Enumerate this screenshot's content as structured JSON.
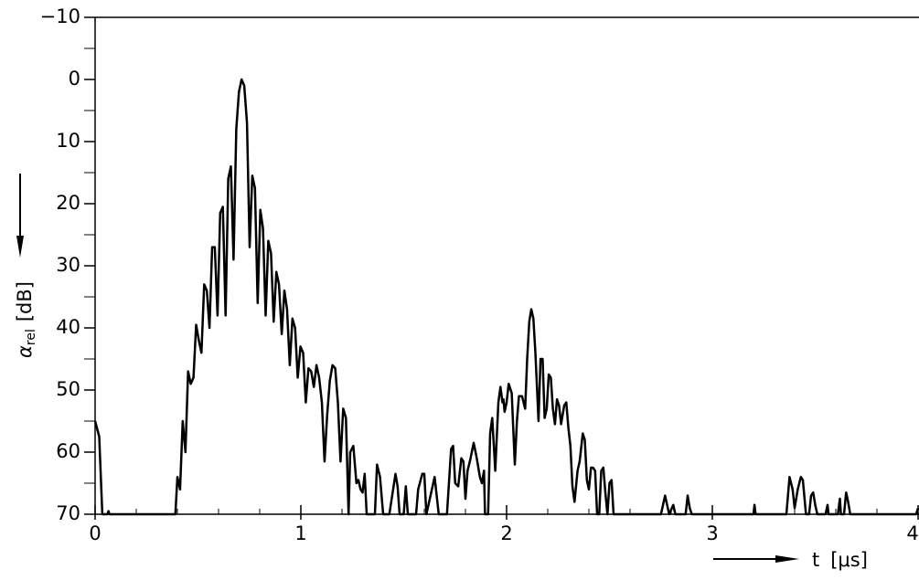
{
  "chart_data": {
    "type": "line",
    "y_label": {
      "symbol": "α",
      "subscript": "rel",
      "unit": "[dB]"
    },
    "x_label": {
      "symbol": "t",
      "unit": "[μs]"
    },
    "color": "#000000",
    "xlim": [
      0,
      4
    ],
    "xticks": [
      0,
      1,
      2,
      3,
      4
    ],
    "x_minor_ticks": [
      0.2,
      0.4,
      0.6,
      0.8,
      1.2,
      1.4,
      1.6,
      1.8,
      2.2,
      2.4,
      2.6,
      2.8,
      3.2,
      3.4,
      3.6,
      3.8
    ],
    "ylim": [
      70,
      -10
    ],
    "yticks": [
      {
        "value": -10,
        "label": "−10"
      },
      0,
      10,
      20,
      30,
      40,
      50,
      60,
      70
    ],
    "y_minor_ticks": [
      -5,
      5,
      15,
      25,
      35,
      45,
      55,
      65
    ],
    "x": [
      0,
      0.02,
      0.035,
      0.06,
      0.065,
      0.07,
      0.39,
      0.4,
      0.413,
      0.426,
      0.439,
      0.452,
      0.465,
      0.478,
      0.491,
      0.504,
      0.517,
      0.53,
      0.543,
      0.556,
      0.569,
      0.582,
      0.595,
      0.608,
      0.621,
      0.634,
      0.647,
      0.66,
      0.673,
      0.686,
      0.699,
      0.712,
      0.725,
      0.738,
      0.751,
      0.764,
      0.777,
      0.79,
      0.803,
      0.816,
      0.829,
      0.842,
      0.855,
      0.868,
      0.881,
      0.894,
      0.907,
      0.92,
      0.933,
      0.946,
      0.959,
      0.972,
      0.985,
      0.998,
      1.011,
      1.024,
      1.037,
      1.05,
      1.063,
      1.076,
      1.089,
      1.102,
      1.115,
      1.128,
      1.141,
      1.154,
      1.167,
      1.18,
      1.193,
      1.206,
      1.219,
      1.232,
      1.24,
      1.255,
      1.27,
      1.28,
      1.29,
      1.3,
      1.31,
      1.32,
      1.36,
      1.37,
      1.385,
      1.4,
      1.43,
      1.46,
      1.47,
      1.48,
      1.5,
      1.51,
      1.52,
      1.56,
      1.57,
      1.59,
      1.6,
      1.61,
      1.63,
      1.65,
      1.67,
      1.71,
      1.73,
      1.74,
      1.75,
      1.765,
      1.78,
      1.79,
      1.8,
      1.81,
      1.825,
      1.84,
      1.855,
      1.87,
      1.88,
      1.89,
      1.895,
      1.91,
      1.92,
      1.93,
      1.945,
      1.96,
      1.97,
      1.98,
      1.985,
      1.99,
      2.0,
      2.01,
      2.025,
      2.04,
      2.05,
      2.06,
      2.075,
      2.09,
      2.1,
      2.11,
      2.12,
      2.13,
      2.14,
      2.155,
      2.165,
      2.175,
      2.185,
      2.195,
      2.205,
      2.215,
      2.225,
      2.235,
      2.245,
      2.255,
      2.265,
      2.28,
      2.29,
      2.3,
      2.31,
      2.32,
      2.33,
      2.345,
      2.355,
      2.37,
      2.38,
      2.39,
      2.4,
      2.41,
      2.42,
      2.43,
      2.44,
      2.45,
      2.46,
      2.47,
      2.48,
      2.49,
      2.5,
      2.51,
      2.52,
      2.75,
      2.77,
      2.79,
      2.81,
      2.82,
      2.87,
      2.88,
      2.89,
      2.9,
      3.2,
      3.205,
      3.21,
      3.36,
      3.375,
      3.39,
      3.4,
      3.415,
      3.43,
      3.44,
      3.455,
      3.47,
      3.48,
      3.49,
      3.5,
      3.51,
      3.55,
      3.56,
      3.565,
      3.61,
      3.62,
      3.625,
      3.64,
      3.65,
      3.66,
      3.67,
      3.99,
      4.0
    ],
    "values": [
      55,
      57.5,
      70,
      70,
      69.5,
      70,
      70,
      64,
      66,
      55,
      60,
      47,
      49,
      48,
      39.5,
      42,
      44,
      33,
      34,
      40,
      27,
      27,
      38,
      21.5,
      20.5,
      38,
      16,
      14,
      29,
      8,
      2,
      0,
      1,
      7,
      27,
      15.5,
      17.5,
      36,
      21,
      24,
      38,
      26,
      28,
      39,
      31,
      33,
      41,
      34,
      37,
      46,
      38.5,
      40,
      48,
      43,
      44,
      52,
      46.5,
      47,
      49.5,
      46,
      48,
      52,
      61.5,
      54,
      48.5,
      46,
      46.5,
      52,
      61.5,
      53,
      54.5,
      70,
      60,
      59,
      65,
      64.5,
      66,
      66.5,
      63.5,
      70,
      70,
      62,
      64,
      70,
      70,
      63.5,
      65.5,
      70,
      70,
      65.5,
      70,
      70,
      66,
      63.5,
      63.5,
      70,
      67,
      64,
      70,
      70,
      59.5,
      59,
      65,
      65.5,
      61,
      61.5,
      67.5,
      63,
      61,
      58.5,
      61,
      64,
      65,
      63,
      70,
      70,
      57,
      54.5,
      63,
      52,
      49.5,
      52,
      51.5,
      53.5,
      52,
      49,
      50.5,
      62,
      55,
      51,
      51,
      53,
      45,
      39,
      37,
      38.5,
      44,
      55,
      45,
      45,
      54.5,
      53,
      47.5,
      48,
      53,
      55.5,
      51.5,
      52.5,
      55.5,
      52.5,
      52,
      56,
      59,
      65.5,
      68,
      63,
      61.5,
      57,
      58,
      64.5,
      66,
      62.5,
      62.5,
      63,
      70,
      70,
      63,
      62.5,
      66.5,
      70,
      65,
      64.5,
      70,
      70,
      67,
      70,
      68.5,
      70,
      70,
      67,
      69,
      70,
      70,
      68.5,
      70,
      70,
      64,
      66,
      69,
      66,
      64,
      64.5,
      70,
      70,
      67,
      66.5,
      68.5,
      70,
      70,
      68.5,
      70,
      70,
      67.5,
      70,
      70,
      66.5,
      68,
      70,
      70,
      69
    ]
  }
}
